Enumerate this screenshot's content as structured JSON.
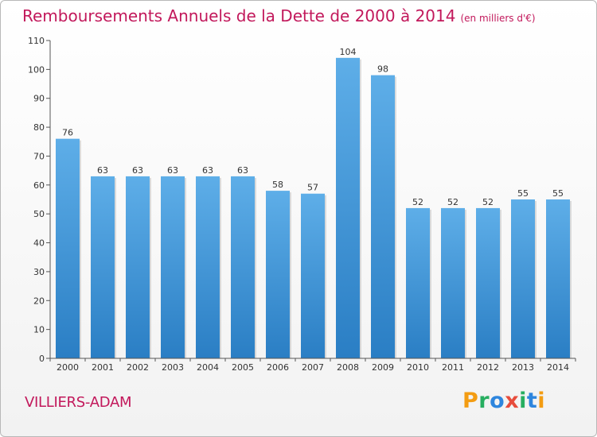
{
  "title": "Remboursements Annuels de la Dette de 2000 à 2014",
  "title_unit": "(en milliers d'€)",
  "commune": "VILLIERS-ADAM",
  "logo": {
    "text": "Proxiti",
    "letters": [
      {
        "char": "P",
        "color": "#f39c12"
      },
      {
        "char": "r",
        "color": "#27ae60"
      },
      {
        "char": "o",
        "color": "#2e86de"
      },
      {
        "char": "x",
        "color": "#e74c3c"
      },
      {
        "char": "i",
        "color": "#27ae60"
      },
      {
        "char": "t",
        "color": "#2e86de"
      },
      {
        "char": "i",
        "color": "#f39c12"
      }
    ]
  },
  "colors": {
    "title": "#c2185b",
    "bar_top": "#5eaee8",
    "bar_bottom": "#2a7ec4",
    "axis": "#555555",
    "text": "#333333"
  },
  "chart_data": {
    "type": "bar",
    "title": "Remboursements Annuels de la Dette de 2000 à 2014",
    "categories": [
      "2000",
      "2001",
      "2002",
      "2003",
      "2004",
      "2005",
      "2006",
      "2007",
      "2008",
      "2009",
      "2010",
      "2011",
      "2012",
      "2013",
      "2014"
    ],
    "values": [
      76,
      63,
      63,
      63,
      63,
      63,
      58,
      57,
      104,
      98,
      52,
      52,
      52,
      55,
      55
    ],
    "ylim": [
      0,
      110
    ],
    "yticks": [
      0,
      10,
      20,
      30,
      40,
      50,
      60,
      70,
      80,
      90,
      100,
      110
    ],
    "grid": false,
    "data_labels": true
  }
}
